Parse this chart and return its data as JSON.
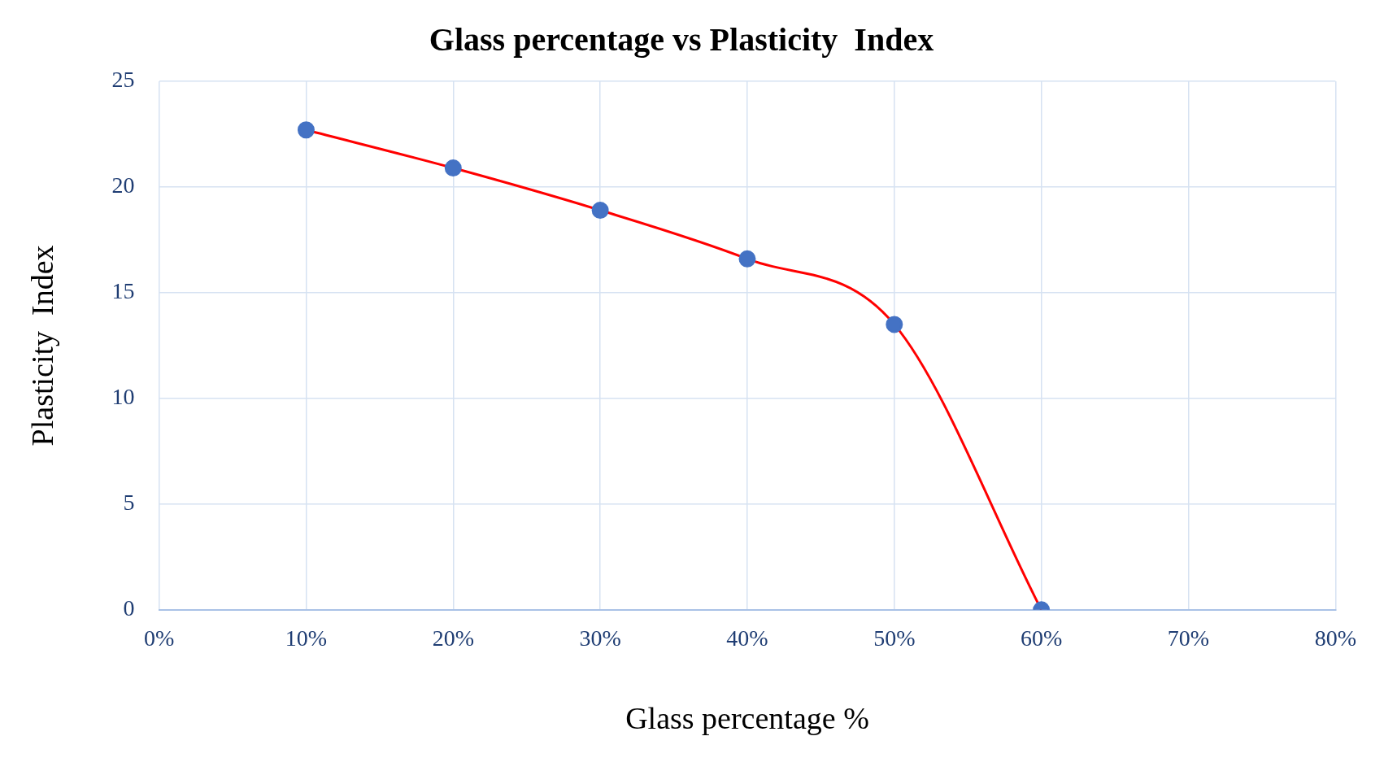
{
  "chart_data": {
    "type": "line",
    "title": "Glass percentage vs Plasticity  Index",
    "xlabel": "Glass percentage %",
    "ylabel": "Plasticity  Index",
    "x": [
      10,
      20,
      30,
      40,
      50,
      60
    ],
    "series": [
      {
        "color": "#ff0000",
        "colors": [
          "#4472c4",
          "#4472c4",
          "#4472c4",
          "#4472c4",
          "#4472c4",
          "#4472c4"
        ],
        "values": [
          22.7,
          20.9,
          18.9,
          16.6,
          13.5,
          0
        ]
      }
    ],
    "xlim": [
      0,
      80
    ],
    "xticks": [
      {
        "value": 0,
        "label": "0%"
      },
      {
        "value": 10,
        "label": "10%"
      },
      {
        "value": 20,
        "label": "20%"
      },
      {
        "value": 30,
        "label": "30%"
      },
      {
        "value": 40,
        "label": "40%"
      },
      {
        "value": 50,
        "label": "50%"
      },
      {
        "value": 60,
        "label": "60%"
      },
      {
        "value": 70,
        "label": "70%"
      },
      {
        "value": 80,
        "label": "80%"
      }
    ],
    "ylim": [
      0,
      25
    ],
    "yticks": [
      0,
      5,
      10,
      15,
      20,
      25
    ],
    "grid": true,
    "legend": false,
    "marker": "circle",
    "line_style": "solid"
  }
}
